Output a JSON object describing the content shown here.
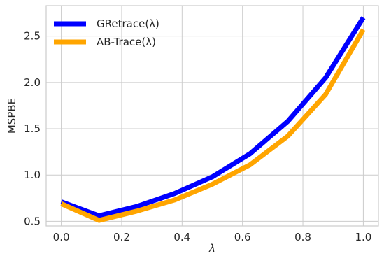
{
  "chart_data": {
    "type": "line",
    "xlabel": "λ",
    "ylabel": "MSPBE",
    "xlim": [
      -0.05,
      1.05
    ],
    "ylim": [
      0.45,
      2.83
    ],
    "xticks": [
      0.0,
      0.2,
      0.4,
      0.6,
      0.8,
      1.0
    ],
    "xtick_labels": [
      "0.0",
      "0.2",
      "0.4",
      "0.6",
      "0.8",
      "1.0"
    ],
    "yticks": [
      0.5,
      1.0,
      1.5,
      2.0,
      2.5
    ],
    "ytick_labels": [
      "0.5",
      "1.0",
      "1.5",
      "2.0",
      "2.5"
    ],
    "grid": true,
    "legend_position": "top-left",
    "x": [
      0.0,
      0.125,
      0.25,
      0.375,
      0.5,
      0.625,
      0.75,
      0.875,
      1.0
    ],
    "series": [
      {
        "name": "GRetrace(λ)",
        "color": "#0000ff",
        "values": [
          0.71,
          0.56,
          0.66,
          0.8,
          0.98,
          1.23,
          1.58,
          2.05,
          2.7
        ]
      },
      {
        "name": "AB-Trace(λ)",
        "color": "#ffa500",
        "values": [
          0.69,
          0.51,
          0.61,
          0.73,
          0.9,
          1.11,
          1.42,
          1.87,
          2.57
        ]
      }
    ]
  }
}
